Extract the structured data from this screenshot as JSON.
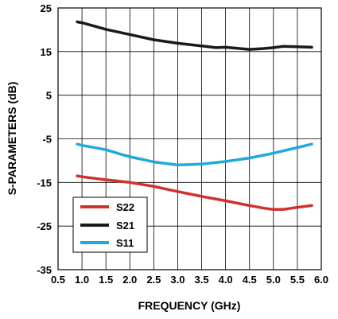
{
  "chart_data": {
    "type": "line",
    "xlabel": "FREQUENCY (GHz)",
    "ylabel": "S-PARAMETERS (dB)",
    "xlim": [
      0.5,
      6.0
    ],
    "ylim": [
      -35,
      25
    ],
    "x_ticks": [
      "0.5",
      "1.0",
      "1.5",
      "2.0",
      "2.5",
      "3.0",
      "3.5",
      "4.0",
      "4.5",
      "5.0",
      "5.5",
      "6.0"
    ],
    "y_ticks": [
      "25",
      "15",
      "5",
      "-5",
      "-15",
      "-25",
      "-35"
    ],
    "x_tick_values": [
      0.5,
      1.0,
      1.5,
      2.0,
      2.5,
      3.0,
      3.5,
      4.0,
      4.5,
      5.0,
      5.5,
      6.0
    ],
    "y_tick_values": [
      25,
      15,
      5,
      -5,
      -15,
      -25,
      -35
    ],
    "grid": true,
    "legend_position": "bottom-left",
    "series": [
      {
        "name": "S22",
        "color": "#d0312d",
        "x": [
          0.9,
          1.0,
          1.5,
          2.0,
          2.5,
          3.0,
          3.5,
          4.0,
          4.5,
          4.8,
          5.0,
          5.2,
          5.5,
          5.8
        ],
        "y": [
          -13.5,
          -13.7,
          -14.4,
          -15.0,
          -15.9,
          -17.1,
          -18.2,
          -19.2,
          -20.3,
          -20.9,
          -21.2,
          -21.2,
          -20.7,
          -20.3
        ]
      },
      {
        "name": "S21",
        "color": "#1a1a1a",
        "x": [
          0.9,
          1.0,
          1.5,
          2.0,
          2.5,
          3.0,
          3.5,
          3.8,
          4.0,
          4.5,
          4.8,
          5.0,
          5.2,
          5.5,
          5.8
        ],
        "y": [
          21.8,
          21.6,
          20.1,
          18.9,
          17.7,
          16.9,
          16.3,
          15.9,
          16.0,
          15.5,
          15.7,
          15.9,
          16.2,
          16.1,
          16.0
        ]
      },
      {
        "name": "S11",
        "color": "#1eaadc",
        "x": [
          0.9,
          1.0,
          1.5,
          1.8,
          2.0,
          2.5,
          3.0,
          3.5,
          4.0,
          4.5,
          5.0,
          5.5,
          5.8
        ],
        "y": [
          -6.2,
          -6.5,
          -7.5,
          -8.5,
          -9.1,
          -10.3,
          -11.0,
          -10.8,
          -10.2,
          -9.4,
          -8.3,
          -7.0,
          -6.2
        ]
      }
    ]
  }
}
